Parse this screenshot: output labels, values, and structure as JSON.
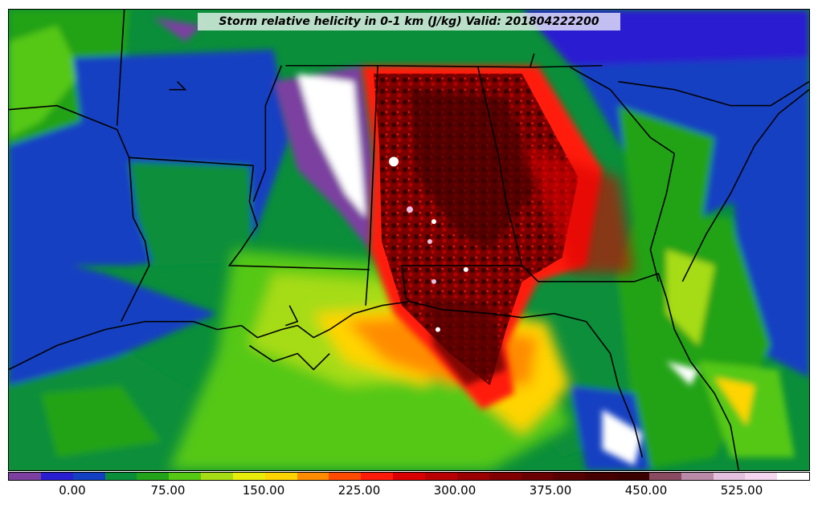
{
  "title": "Storm relative helicity in 0-1 km (J/kg) Valid: 201804222200",
  "colorbar": {
    "colors": [
      "#7b3fa0",
      "#2a1fd0",
      "#1340c2",
      "#0a8e3a",
      "#23a319",
      "#55c814",
      "#a6dc14",
      "#e8ec0a",
      "#ffd400",
      "#ff8c00",
      "#ff4a00",
      "#ff1a0a",
      "#d90000",
      "#b80000",
      "#9a0000",
      "#800000",
      "#6a0000",
      "#560000",
      "#440000",
      "#3a0000",
      "#8a4a60",
      "#b88aa8",
      "#e3c1de",
      "#f4d6f0",
      "#ffffff"
    ],
    "tick_labels": [
      "0.00",
      "75.00",
      "150.00",
      "225.00",
      "300.00",
      "375.00",
      "450.00",
      "525.00"
    ]
  }
}
